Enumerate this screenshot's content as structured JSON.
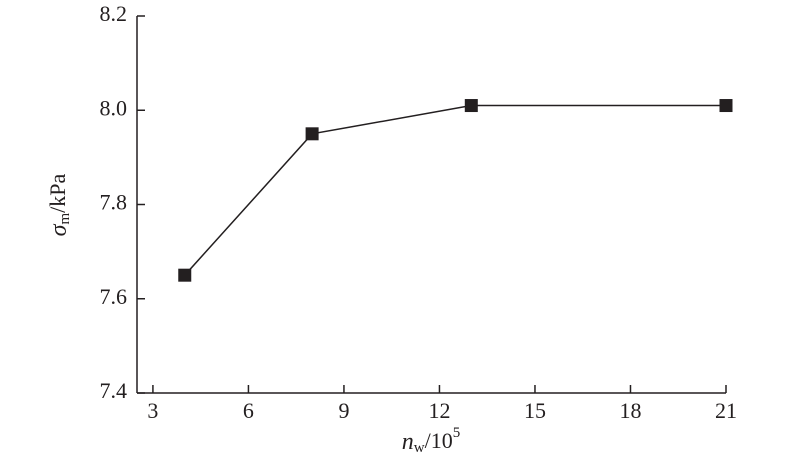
{
  "chart_data": {
    "type": "line",
    "x_label": {
      "symbol": "n",
      "subscript": "w",
      "text": "/10",
      "superscript": "5"
    },
    "y_label": {
      "symbol": "σ",
      "subscript": "m",
      "text": "/kPa"
    },
    "x": [
      4,
      8,
      13,
      21
    ],
    "series": [
      {
        "color": "#231f20",
        "values": [
          7.65,
          7.95,
          8.01,
          8.01
        ]
      }
    ],
    "xlim": [
      2.5,
      21
    ],
    "xticks": [
      3,
      6,
      9,
      12,
      15,
      18,
      21
    ],
    "ylim": [
      7.4,
      8.2
    ],
    "yticks": [
      7.4,
      7.6,
      7.8,
      {
        "value": 8,
        "label": "8.0"
      },
      8.2
    ],
    "grid": false,
    "marker": "square"
  }
}
